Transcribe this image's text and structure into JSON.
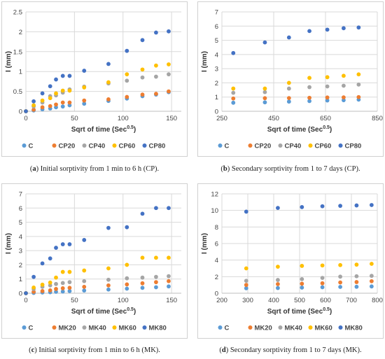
{
  "figure": {
    "captions": [
      {
        "tag": "a",
        "text": "Initial sorptivity from 1 min to 6 h (CP)."
      },
      {
        "tag": "b",
        "text": "Secondary sorptivity from 1 to 7 days (CP)."
      },
      {
        "tag": "c",
        "text": "Initial sorptivity from 1 min to 6 h (MK)."
      },
      {
        "tag": "d",
        "text": "Secondary sorptivity from 1 to 7 days (MK)."
      }
    ]
  },
  "colors": {
    "C": "#5b9bd5",
    "X20": "#ed7d31",
    "X40": "#a5a5a5",
    "X60": "#ffc000",
    "X80": "#4472c4"
  },
  "chart_data": [
    {
      "id": "a",
      "type": "scatter",
      "title": "",
      "xlabel": "Sqrt of time (Sec^0.5)",
      "xlabel_base": "Sqrt of time (Sec",
      "xlabel_sup": "0.5",
      "xlabel_end": ")",
      "ylabel": "I (mm)",
      "xlim": [
        0,
        160
      ],
      "ylim": [
        0,
        2.5
      ],
      "xticks": [
        0,
        50,
        100,
        150
      ],
      "yticks": [
        0,
        0.5,
        1,
        1.5,
        2,
        2.5
      ],
      "ytick_labels": [
        "0",
        "0.5",
        "1",
        "1.5",
        "2",
        "2.5"
      ],
      "grid": true,
      "legend_position": "bottom",
      "x": [
        0,
        8,
        17,
        25,
        31,
        38,
        45,
        60,
        85,
        104,
        120,
        134,
        147
      ],
      "series": [
        {
          "name": "C",
          "color_key": "C",
          "values": [
            0,
            0.02,
            0.05,
            0.07,
            0.1,
            0.12,
            0.15,
            0.19,
            0.26,
            0.32,
            0.38,
            0.42,
            0.48
          ]
        },
        {
          "name": "CP20",
          "color_key": "X20",
          "values": [
            0,
            0.04,
            0.1,
            0.13,
            0.17,
            0.22,
            0.22,
            0.27,
            0.3,
            0.36,
            0.42,
            0.44,
            0.5
          ]
        },
        {
          "name": "CP40",
          "color_key": "X40",
          "values": [
            0,
            0.12,
            0.22,
            0.38,
            0.4,
            0.47,
            0.55,
            0.62,
            0.7,
            0.77,
            0.85,
            0.87,
            0.93
          ]
        },
        {
          "name": "CP60",
          "color_key": "X60",
          "values": [
            0,
            0.15,
            0.27,
            0.33,
            0.45,
            0.52,
            0.52,
            0.6,
            0.73,
            0.93,
            1.05,
            1.15,
            1.18
          ]
        },
        {
          "name": "CP80",
          "color_key": "X80",
          "values": [
            0,
            0.25,
            0.45,
            0.63,
            0.8,
            0.89,
            0.89,
            1.02,
            1.19,
            1.52,
            1.79,
            1.98,
            2.01
          ]
        }
      ]
    },
    {
      "id": "b",
      "type": "scatter",
      "title": "",
      "xlabel": "Sqrt of time (Sec^0.5)",
      "xlabel_base": "Sqrt of time (Sec",
      "xlabel_sup": "0.5",
      "xlabel_end": ")",
      "ylabel": "I (mm)",
      "xlim": [
        250,
        850
      ],
      "ylim": [
        0,
        7
      ],
      "xticks": [
        250,
        450,
        650,
        850
      ],
      "yticks": [
        0,
        1,
        2,
        3,
        4,
        5,
        6,
        7
      ],
      "ytick_labels": [
        "0",
        "1",
        "2",
        "3",
        "4",
        "5",
        "6",
        "7"
      ],
      "grid": true,
      "legend_position": "bottom",
      "x": [
        294,
        416,
        509,
        588,
        657,
        720,
        778
      ],
      "series": [
        {
          "name": "C",
          "color_key": "C",
          "values": [
            0.6,
            0.63,
            0.68,
            0.72,
            0.76,
            0.78,
            0.82
          ]
        },
        {
          "name": "CP20",
          "color_key": "X20",
          "values": [
            0.9,
            0.92,
            0.93,
            0.95,
            0.97,
            0.98,
            1.0
          ]
        },
        {
          "name": "CP40",
          "color_key": "X40",
          "values": [
            1.3,
            1.35,
            1.6,
            1.7,
            1.75,
            1.8,
            1.88
          ]
        },
        {
          "name": "CP60",
          "color_key": "X60",
          "values": [
            1.6,
            1.6,
            2.0,
            2.35,
            2.4,
            2.5,
            2.6
          ]
        },
        {
          "name": "CP80",
          "color_key": "X80",
          "values": [
            4.1,
            4.85,
            5.2,
            5.65,
            5.75,
            5.85,
            5.9
          ]
        }
      ]
    },
    {
      "id": "c",
      "type": "scatter",
      "title": "",
      "xlabel": "Sqrt of time (Sec^0.5)",
      "xlabel_base": "Sqrt of time (Sec",
      "xlabel_sup": "0.5",
      "xlabel_end": ")",
      "ylabel": "I (mm)",
      "xlim": [
        0,
        160
      ],
      "ylim": [
        0,
        7
      ],
      "xticks": [
        0,
        50,
        100,
        150
      ],
      "yticks": [
        0,
        1,
        2,
        3,
        4,
        5,
        6,
        7
      ],
      "ytick_labels": [
        "0",
        "1",
        "2",
        "3",
        "4",
        "5",
        "6",
        "7"
      ],
      "grid": true,
      "legend_position": "bottom",
      "x": [
        0,
        8,
        17,
        25,
        31,
        38,
        45,
        60,
        85,
        104,
        120,
        134,
        147
      ],
      "series": [
        {
          "name": "C",
          "color_key": "C",
          "values": [
            0,
            0.02,
            0.05,
            0.07,
            0.1,
            0.12,
            0.15,
            0.19,
            0.26,
            0.32,
            0.38,
            0.42,
            0.48
          ]
        },
        {
          "name": "MK20",
          "color_key": "X20",
          "values": [
            0,
            0.1,
            0.15,
            0.2,
            0.3,
            0.35,
            0.38,
            0.45,
            0.55,
            0.62,
            0.7,
            0.78,
            0.85
          ]
        },
        {
          "name": "MK40",
          "color_key": "X40",
          "values": [
            0,
            0.3,
            0.45,
            0.55,
            0.65,
            0.72,
            0.78,
            0.85,
            0.95,
            1.05,
            1.1,
            1.15,
            1.2
          ]
        },
        {
          "name": "MK60",
          "color_key": "X60",
          "values": [
            0,
            0.4,
            0.6,
            0.75,
            1.1,
            1.5,
            1.5,
            1.6,
            1.75,
            2.0,
            2.5,
            2.5,
            2.5
          ]
        },
        {
          "name": "MK80",
          "color_key": "X80",
          "values": [
            0,
            1.15,
            2.1,
            2.45,
            3.2,
            3.45,
            3.45,
            3.75,
            4.6,
            4.65,
            5.6,
            6.0,
            6.0
          ]
        }
      ]
    },
    {
      "id": "d",
      "type": "scatter",
      "title": "",
      "xlabel": "Sqrt of time (Sec^0.5)",
      "xlabel_base": "Sqrt of time (Sec",
      "xlabel_sup": "0.5",
      "xlabel_end": ")",
      "ylabel": "I (mm)",
      "xlim": [
        200,
        800
      ],
      "ylim": [
        0,
        12
      ],
      "xticks": [
        200,
        300,
        400,
        500,
        600,
        700,
        800
      ],
      "yticks": [
        0,
        2,
        4,
        6,
        8,
        10,
        12
      ],
      "ytick_labels": [
        "0",
        "2",
        "4",
        "6",
        "8",
        "10",
        "12"
      ],
      "grid": true,
      "legend_position": "bottom",
      "x": [
        294,
        416,
        509,
        588,
        657,
        720,
        778
      ],
      "series": [
        {
          "name": "C",
          "color_key": "C",
          "values": [
            0.6,
            0.63,
            0.68,
            0.72,
            0.76,
            0.78,
            0.82
          ]
        },
        {
          "name": "MK20",
          "color_key": "X20",
          "values": [
            1.0,
            1.1,
            1.15,
            1.2,
            1.3,
            1.35,
            1.45
          ]
        },
        {
          "name": "MK40",
          "color_key": "X40",
          "values": [
            1.5,
            1.6,
            1.7,
            1.85,
            2.0,
            2.05,
            2.1
          ]
        },
        {
          "name": "MK60",
          "color_key": "X60",
          "values": [
            3.0,
            3.2,
            3.3,
            3.35,
            3.4,
            3.45,
            3.55
          ]
        },
        {
          "name": "MK80",
          "color_key": "X80",
          "values": [
            9.85,
            10.3,
            10.4,
            10.5,
            10.55,
            10.6,
            10.65
          ]
        }
      ]
    }
  ]
}
